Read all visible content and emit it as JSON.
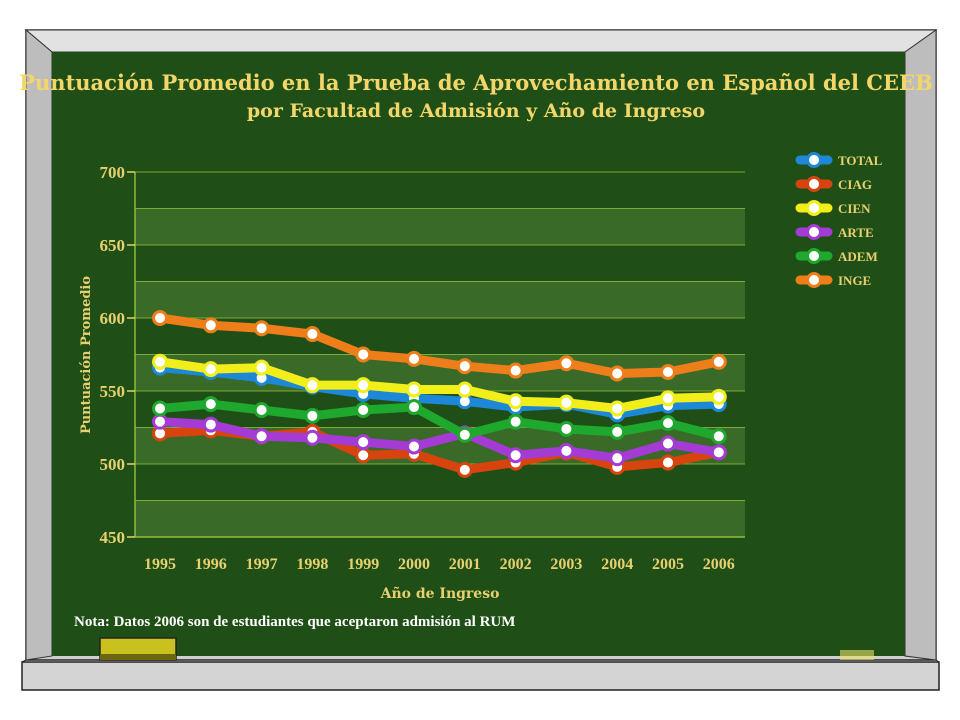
{
  "slide": {
    "note": "Nota:  Datos 2006 son de estudiantes que aceptaron admisión al RUM",
    "colors": {
      "board": "#1f4f16",
      "frame_outer": "#c9c9c9",
      "title": "#f3d66a",
      "axis_text": "#e8d070",
      "band": "#3a6a28",
      "grid": "#8dbb3d",
      "chalk_tray": "#c9c11e"
    }
  },
  "chart_data": {
    "type": "line",
    "title": "Puntuación Promedio en la Prueba de Aprovechamiento en Español del CEEB",
    "subtitle": "por Facultad de Admisión y Año de Ingreso",
    "xlabel": "Año de Ingreso",
    "ylabel": "Puntuación Promedio",
    "ylim": [
      450,
      700
    ],
    "yticks": [
      "700",
      "650",
      "600",
      "550",
      "500",
      "450"
    ],
    "categories": [
      "1995",
      "1996",
      "1997",
      "1998",
      "1999",
      "2000",
      "2001",
      "2002",
      "2003",
      "2004",
      "2005",
      "2006"
    ],
    "grid": true,
    "legend_position": "top-right",
    "series": [
      {
        "name": "TOTAL",
        "color": "#1e88d8",
        "values": [
          566,
          563,
          559,
          553,
          548,
          545,
          543,
          539,
          541,
          534,
          540,
          541
        ]
      },
      {
        "name": "CIAG",
        "color": "#d8440e",
        "values": [
          521,
          523,
          519,
          522,
          506,
          507,
          496,
          501,
          508,
          498,
          501,
          508
        ]
      },
      {
        "name": "CIEN",
        "color": "#f2ee1a",
        "values": [
          570,
          565,
          566,
          554,
          554,
          551,
          551,
          543,
          542,
          538,
          545,
          546
        ]
      },
      {
        "name": "ARTE",
        "color": "#a43bd4",
        "values": [
          529,
          527,
          519,
          518,
          515,
          512,
          521,
          506,
          509,
          504,
          514,
          508
        ]
      },
      {
        "name": "ADEM",
        "color": "#1ea82e",
        "values": [
          538,
          541,
          537,
          533,
          537,
          539,
          520,
          529,
          524,
          522,
          528,
          519
        ]
      },
      {
        "name": "INGE",
        "color": "#ee7e1a",
        "values": [
          600,
          595,
          593,
          589,
          575,
          572,
          567,
          564,
          569,
          562,
          563,
          570
        ]
      }
    ]
  }
}
